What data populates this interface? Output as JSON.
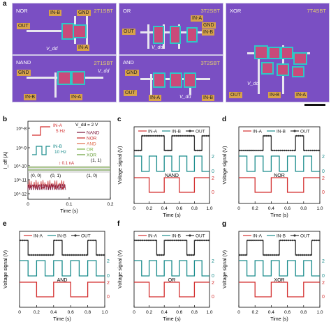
{
  "panel_labels": [
    "a",
    "b",
    "c",
    "d",
    "e",
    "f",
    "g"
  ],
  "chips": [
    {
      "id": "nor",
      "name": "NOR",
      "type": "2T1SBT",
      "pads": [
        "IN-B",
        "GND",
        "OUT",
        "IN-A"
      ],
      "vdd": "V_dd"
    },
    {
      "id": "or",
      "name": "OR",
      "type": "3T2SBT",
      "pads": [
        "IN-A",
        "GND",
        "OUT",
        "IN-B"
      ],
      "vdd": "V_dd"
    },
    {
      "id": "xor",
      "name": "XOR",
      "type": "7T4SBT",
      "pads": [
        "OUT",
        "IN-B",
        "IN-A"
      ],
      "vdd": "V_dd"
    },
    {
      "id": "nand",
      "name": "NAND",
      "type": "2T1SBT",
      "pads": [
        "GND",
        "IN-B",
        "IN-A"
      ],
      "vdd": "V_dd"
    },
    {
      "id": "and",
      "name": "AND",
      "type": "3T2SBT",
      "pads": [
        "GND",
        "OUT",
        "IN-A",
        "IN-B"
      ],
      "vdd": "V_dd"
    }
  ],
  "colors": {
    "in_a": "#d32f2f",
    "in_b": "#1a8c8c",
    "out": "#333333",
    "nand": "#7b1238",
    "nor": "#c62828",
    "and": "#e06a4a",
    "or": "#7cb342",
    "xor": "#689f38"
  },
  "chart_data": [
    {
      "id": "b",
      "type": "line",
      "xlabel": "Time (s)",
      "ylabel": "I_off (A)",
      "xlim": [
        0,
        0.2
      ],
      "x_ticks": [
        "0",
        "0.1",
        "0.2"
      ],
      "y_ticks": [
        "10^-8",
        "10^-9",
        "10^-10",
        "10^-11",
        "10^-12"
      ],
      "annotation_vdd": "V_dd = 2 V",
      "in_a_label": "IN-A",
      "in_a_freq": "5 Hz",
      "in_b_label": "IN-B",
      "in_b_freq": "10 Hz",
      "scale_label": "0.1 nA",
      "state_labels": [
        "(0, 0)",
        "(0, 1)",
        "(1, 0)",
        "(1, 1)"
      ],
      "series": [
        {
          "name": "NAND"
        },
        {
          "name": "NOR"
        },
        {
          "name": "AND"
        },
        {
          "name": "OR"
        },
        {
          "name": "XOR"
        }
      ]
    },
    {
      "id": "c",
      "type": "line",
      "gate": "NAND",
      "xlabel": "Time (s)",
      "ylabel": "Voltage signal (V)",
      "xlim": [
        0,
        1
      ],
      "x_ticks": [
        "0",
        "0.2",
        "0.4",
        "0.6",
        "0.8",
        "1.0"
      ],
      "right_ticks_b": [
        "2",
        "0"
      ],
      "right_ticks_a": [
        "2",
        "0"
      ],
      "legend": [
        "IN-A",
        "IN-B",
        "OUT"
      ],
      "in_a": [
        1,
        0,
        1,
        0,
        1
      ],
      "in_b": [
        1,
        0,
        1,
        0,
        1,
        0,
        1,
        0,
        1,
        0
      ],
      "out": [
        0,
        1,
        1,
        1,
        0,
        1,
        1,
        1,
        0,
        1
      ]
    },
    {
      "id": "d",
      "type": "line",
      "gate": "NOR",
      "xlabel": "Time (s)",
      "ylabel": "Voltage signal (V)",
      "xlim": [
        0,
        1
      ],
      "x_ticks": [
        "0",
        "0.2",
        "0.4",
        "0.6",
        "0.8",
        "1.0"
      ],
      "right_ticks_b": [
        "2",
        "0"
      ],
      "right_ticks_a": [
        "2",
        "0"
      ],
      "legend": [
        "IN-A",
        "IN-B",
        "OUT"
      ],
      "in_a": [
        1,
        0,
        1,
        0,
        1
      ],
      "in_b": [
        1,
        0,
        1,
        0,
        1,
        0,
        1,
        0,
        1,
        0
      ],
      "out": [
        0,
        0,
        0,
        1,
        0,
        0,
        0,
        1,
        0,
        0
      ]
    },
    {
      "id": "e",
      "type": "line",
      "gate": "AND",
      "xlabel": "Time (s)",
      "ylabel": "Voltage signal (V)",
      "xlim": [
        0,
        1
      ],
      "x_ticks": [
        "0",
        "0.2",
        "0.4",
        "0.6",
        "0.8",
        "1.0"
      ],
      "right_ticks_b": [
        "2",
        "0"
      ],
      "right_ticks_a": [
        "2",
        "0"
      ],
      "legend": [
        "IN-A",
        "IN-B",
        "OUT"
      ],
      "in_a": [
        1,
        0,
        1,
        0,
        1
      ],
      "in_b": [
        1,
        0,
        1,
        0,
        1,
        0,
        1,
        0,
        1,
        0
      ],
      "out": [
        1,
        0,
        0,
        0,
        1,
        0,
        0,
        0,
        1,
        0
      ]
    },
    {
      "id": "f",
      "type": "line",
      "gate": "OR",
      "xlabel": "Time (s)",
      "ylabel": "Voltage signal (V)",
      "xlim": [
        0,
        1
      ],
      "x_ticks": [
        "0",
        "0.2",
        "0.4",
        "0.6",
        "0.8",
        "1.0"
      ],
      "right_ticks_b": [
        "2",
        "0"
      ],
      "right_ticks_a": [
        "2",
        "0"
      ],
      "legend": [
        "IN-A",
        "IN-B",
        "OUT"
      ],
      "in_a": [
        1,
        0,
        1,
        0,
        1
      ],
      "in_b": [
        1,
        0,
        1,
        0,
        1,
        0,
        1,
        0,
        1,
        0
      ],
      "out": [
        1,
        1,
        1,
        0,
        1,
        1,
        1,
        0,
        1,
        1
      ]
    },
    {
      "id": "g",
      "type": "line",
      "gate": "XOR",
      "xlabel": "Time (s)",
      "ylabel": "Voltage signal (V)",
      "xlim": [
        0,
        1
      ],
      "x_ticks": [
        "0",
        "0.2",
        "0.4",
        "0.6",
        "0.8",
        "1.0"
      ],
      "right_ticks_b": [
        "2",
        "0"
      ],
      "right_ticks_a": [
        "2",
        "0"
      ],
      "legend": [
        "IN-A",
        "IN-B",
        "OUT"
      ],
      "in_a": [
        1,
        0,
        1,
        0,
        1
      ],
      "in_b": [
        1,
        0,
        1,
        0,
        1,
        0,
        1,
        0,
        1,
        0
      ],
      "out": [
        0,
        1,
        1,
        0,
        0,
        1,
        1,
        0,
        0,
        1
      ]
    }
  ]
}
